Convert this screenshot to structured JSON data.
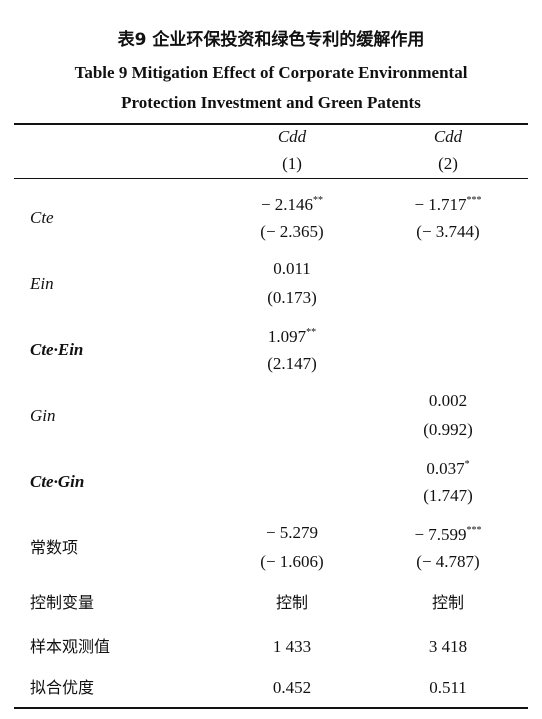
{
  "header": {
    "title_cn": "表9 企业环保投资和绿色专利的缓解作用",
    "title_en": [
      "Table 9  Mitigation Effect of Corporate Environmental",
      "Protection Investment and Green Patents"
    ]
  },
  "table": {
    "columns": [
      {
        "name": "Cdd",
        "number": "(1)"
      },
      {
        "name": "Cdd",
        "number": "(2)"
      }
    ],
    "variables": [
      {
        "label": "Cte",
        "cells": [
          {
            "coef": "− 2.146",
            "stars": "**",
            "t": "(− 2.365)"
          },
          {
            "coef": "− 1.717",
            "stars": "***",
            "t": "(− 3.744)"
          }
        ]
      },
      {
        "label": "Ein",
        "cells": [
          {
            "coef": "0.011",
            "t": "(0.173)"
          },
          null
        ]
      },
      {
        "label": "Cte·Ein",
        "cells": [
          {
            "coef": "1.097",
            "stars": "**",
            "t": "(2.147)"
          },
          null
        ]
      },
      {
        "label": "Gin",
        "cells": [
          null,
          {
            "coef": "0.002",
            "t": "(0.992)"
          }
        ]
      },
      {
        "label": "Cte·Gin",
        "cells": [
          null,
          {
            "coef": "0.037",
            "stars": "*",
            "t": "(1.747)"
          }
        ]
      },
      {
        "label": "常数项",
        "cells": [
          {
            "coef": "− 5.279",
            "t": "(− 1.606)"
          },
          {
            "coef": "− 7.599",
            "stars": "***",
            "t": "(− 4.787)"
          }
        ]
      }
    ],
    "summary": [
      {
        "label": "控制变量",
        "cells": [
          "控制",
          "控制"
        ]
      },
      {
        "label": "样本观测值",
        "cells": [
          "1 433",
          "3 418"
        ]
      },
      {
        "label": "拟合优度",
        "cells": [
          "0.452",
          "0.511"
        ]
      }
    ]
  }
}
